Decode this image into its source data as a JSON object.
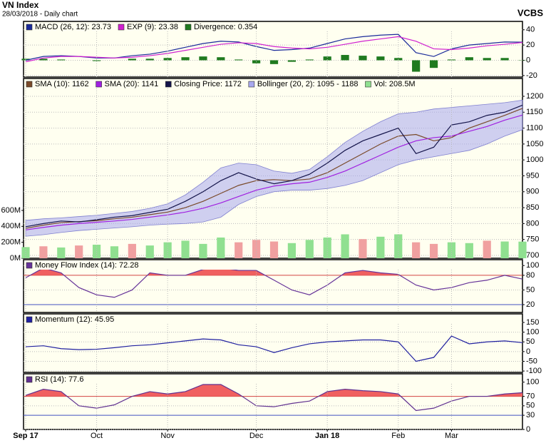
{
  "header": {
    "title": "VN Index",
    "subtitle": "28/03/2018 - Daily chart",
    "source": "VCBS"
  },
  "chart_data": [
    {
      "type": "line",
      "ylim": [
        -22,
        51
      ],
      "yticks": [
        40,
        20,
        0,
        -20
      ],
      "grid": true,
      "series": [
        {
          "name": "MACD (26, 12): 23.73",
          "type": "line",
          "color": "#1a2a9a",
          "values": [
            0,
            5,
            6,
            5,
            3,
            3,
            6,
            8,
            12,
            17,
            22,
            25,
            24,
            18,
            13,
            14,
            16,
            22,
            28,
            31,
            33,
            34,
            10,
            5,
            15,
            20,
            22,
            24,
            23.73
          ]
        },
        {
          "name": "EXP (9): 23.38",
          "type": "line",
          "color": "#d020d0",
          "values": [
            -2,
            3,
            5,
            5,
            4,
            3,
            4,
            6,
            9,
            13,
            17,
            21,
            23,
            22,
            18,
            16,
            15,
            17,
            21,
            25,
            28,
            31,
            25,
            15,
            14,
            16,
            19,
            21,
            23.38
          ]
        },
        {
          "name": "Divergence: 0.354",
          "type": "bar",
          "color": "#1f7a1f",
          "values": [
            2,
            2,
            1,
            0,
            -1,
            0,
            2,
            2,
            3,
            4,
            5,
            4,
            1,
            -4,
            -5,
            -2,
            1,
            5,
            7,
            6,
            5,
            3,
            -15,
            -10,
            1,
            4,
            3,
            3,
            0.354
          ]
        }
      ]
    },
    {
      "type": "line",
      "ylim": [
        691,
        1256
      ],
      "yticks": [
        1200,
        1150,
        1100,
        1050,
        1000,
        950,
        900,
        850,
        800,
        750,
        700
      ],
      "grid": true,
      "y2lim": [
        0,
        2255
      ],
      "y2ticks": [
        {
          "value": 0,
          "label": "0M"
        },
        {
          "value": 200,
          "label": "200M"
        },
        {
          "value": 400,
          "label": "400M"
        },
        {
          "value": 600,
          "label": "600M"
        }
      ],
      "series": [
        {
          "name": "SMA (10): 1162",
          "type": "line",
          "color": "#7a4a2a",
          "values": [
            785,
            795,
            803,
            806,
            809,
            815,
            820,
            828,
            836,
            850,
            870,
            895,
            920,
            935,
            938,
            935,
            940,
            960,
            990,
            1020,
            1050,
            1075,
            1080,
            1060,
            1070,
            1100,
            1120,
            1140,
            1162
          ]
        },
        {
          "name": "SMA (20): 1141",
          "type": "line",
          "color": "#a020e0",
          "values": [
            780,
            788,
            795,
            800,
            804,
            808,
            813,
            820,
            827,
            836,
            848,
            865,
            885,
            905,
            918,
            925,
            930,
            945,
            965,
            990,
            1015,
            1040,
            1060,
            1070,
            1075,
            1090,
            1105,
            1125,
            1141
          ]
        },
        {
          "name": "Closing Price: 1172",
          "type": "line",
          "color": "#14144a",
          "values": [
            790,
            800,
            808,
            805,
            812,
            820,
            825,
            835,
            845,
            870,
            900,
            935,
            960,
            940,
            925,
            935,
            955,
            990,
            1030,
            1060,
            1080,
            1100,
            1020,
            1040,
            1110,
            1120,
            1140,
            1150,
            1172
          ]
        },
        {
          "name": "Bollinger (20, 2): 1095 - 1188",
          "type": "band",
          "color": "#a8a8ee",
          "values": [
            810,
            815,
            818,
            822,
            826,
            832,
            838,
            848,
            862,
            890,
            930,
            975,
            990,
            985,
            965,
            958,
            970,
            1010,
            1055,
            1090,
            1120,
            1145,
            1150,
            1160,
            1165,
            1170,
            1175,
            1180,
            1188
          ],
          "lower": [
            760,
            765,
            772,
            778,
            782,
            786,
            790,
            795,
            798,
            800,
            805,
            820,
            860,
            885,
            900,
            905,
            905,
            910,
            920,
            935,
            960,
            985,
            1000,
            1010,
            1020,
            1030,
            1050,
            1075,
            1095
          ]
        },
        {
          "name": "Vol: 208.5M",
          "type": "bar",
          "axis": "y2",
          "color": "#90e090",
          "values": [
            140,
            150,
            135,
            160,
            170,
            150,
            180,
            160,
            200,
            220,
            180,
            260,
            200,
            230,
            210,
            190,
            230,
            260,
            300,
            240,
            270,
            300,
            200,
            180,
            200,
            190,
            220,
            210,
            208.5
          ],
          "colors": [
            "#90e090",
            "#f0a0a0",
            "#90e090",
            "#f0a0a0",
            "#90e090",
            "#90e090",
            "#f0a0a0",
            "#90e090",
            "#90e090",
            "#90e090",
            "#90e090",
            "#90e090",
            "#f0a0a0",
            "#f0a0a0",
            "#f0a0a0",
            "#90e090",
            "#90e090",
            "#90e090",
            "#90e090",
            "#f0a0a0",
            "#90e090",
            "#90e090",
            "#f0a0a0",
            "#f0a0a0",
            "#90e090",
            "#90e090",
            "#f0a0a0",
            "#90e090",
            "#90e090"
          ]
        }
      ]
    },
    {
      "type": "line",
      "ylim": [
        4,
        112
      ],
      "yticks": [
        100,
        80,
        50,
        20
      ],
      "grid": true,
      "ref_lines": [
        {
          "value": 80,
          "color": "#d04040"
        },
        {
          "value": 20,
          "color": "#4050c0"
        }
      ],
      "series": [
        {
          "name": "Money Flow Index (14): 72.28",
          "type": "line",
          "color": "#663399",
          "fill_above": 80,
          "fill_color": "#f06060",
          "values": [
            75,
            95,
            85,
            55,
            40,
            35,
            50,
            85,
            80,
            80,
            92,
            95,
            90,
            90,
            70,
            50,
            40,
            60,
            85,
            90,
            85,
            82,
            60,
            50,
            55,
            65,
            70,
            80,
            72.28
          ]
        }
      ]
    },
    {
      "type": "line",
      "ylim": [
        -107,
        194
      ],
      "yticks": [
        150,
        100,
        50,
        0,
        -50,
        -100
      ],
      "grid": true,
      "series": [
        {
          "name": "Momentum (12): 45.95",
          "type": "line",
          "color": "#2020a0",
          "values": [
            25,
            30,
            15,
            10,
            12,
            20,
            30,
            35,
            45,
            55,
            65,
            60,
            35,
            25,
            -5,
            20,
            40,
            50,
            55,
            60,
            60,
            50,
            -50,
            -30,
            80,
            40,
            50,
            55,
            45.95
          ]
        }
      ]
    },
    {
      "type": "line",
      "ylim": [
        0,
        117.6
      ],
      "yticks": [
        100,
        70,
        50,
        30,
        0
      ],
      "grid": true,
      "ref_lines": [
        {
          "value": 70,
          "color": "#d04040"
        },
        {
          "value": 30,
          "color": "#4050c0"
        }
      ],
      "categories": [
        "Sep 17",
        null,
        null,
        null,
        "Oct",
        null,
        null,
        null,
        "Nov",
        null,
        null,
        null,
        null,
        "Dec",
        null,
        null,
        null,
        "Jan 18",
        null,
        null,
        null,
        "Feb",
        null,
        null,
        "Mar",
        null,
        null,
        null,
        null
      ],
      "series": [
        {
          "name": "RSI (14): 77.6",
          "type": "line",
          "color": "#603090",
          "fill_above": 70,
          "fill_color": "#f06060",
          "values": [
            72,
            85,
            80,
            50,
            45,
            52,
            70,
            80,
            75,
            80,
            95,
            95,
            75,
            50,
            48,
            55,
            60,
            80,
            85,
            82,
            80,
            75,
            40,
            45,
            60,
            70,
            70,
            75,
            77.6
          ]
        }
      ]
    }
  ]
}
